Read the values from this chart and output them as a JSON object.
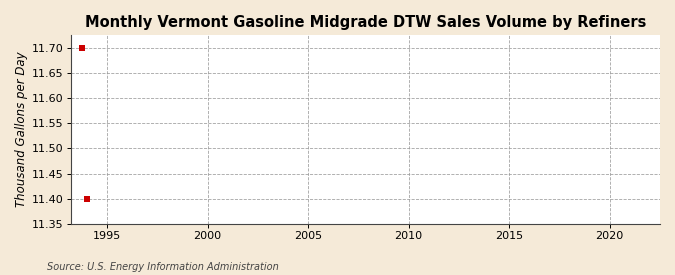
{
  "title": "Monthly Vermont Gasoline Midgrade DTW Sales Volume by Refiners",
  "ylabel": "Thousand Gallons per Day",
  "source": "Source: U.S. Energy Information Administration",
  "background_color": "#f5ead8",
  "plot_background_color": "#ffffff",
  "data_x": [
    1993.75,
    1994.0
  ],
  "data_y": [
    11.7,
    11.4
  ],
  "marker_color": "#cc0000",
  "marker_size": 4,
  "ylim": [
    11.35,
    11.725
  ],
  "xlim": [
    1993.2,
    2022.5
  ],
  "yticks": [
    11.35,
    11.4,
    11.45,
    11.5,
    11.55,
    11.6,
    11.65,
    11.7
  ],
  "xticks": [
    1995,
    2000,
    2005,
    2010,
    2015,
    2020
  ],
  "grid_color": "#999999",
  "grid_style": "--",
  "title_fontsize": 10.5,
  "axis_fontsize": 8.5,
  "tick_fontsize": 8,
  "source_fontsize": 7
}
